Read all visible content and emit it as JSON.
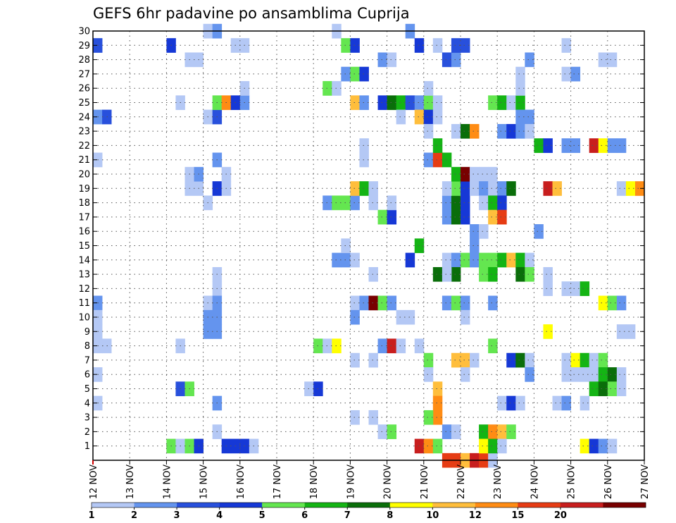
{
  "chart_data": {
    "type": "heatmap",
    "title": "GEFS 6hr padavine po ansamblima Cuprija",
    "xlabel": "",
    "ylabel": "",
    "x_tick_labels": [
      "12 NOV",
      "13 NOV",
      "14 NOV",
      "15 NOV",
      "16 NOV",
      "17 NOV",
      "18 NOV",
      "19 NOV",
      "20 NOV",
      "21 NOV",
      "22 NOV",
      "23 NOV",
      "24 NOV",
      "25 NOV",
      "26 NOV",
      "27 NOV"
    ],
    "x_range_days": [
      12,
      27
    ],
    "y_tick_labels": [
      "1",
      "2",
      "3",
      "4",
      "5",
      "6",
      "7",
      "8",
      "9",
      "10",
      "11",
      "12",
      "13",
      "14",
      "15",
      "16",
      "17",
      "18",
      "19",
      "20",
      "21",
      "22",
      "23",
      "24",
      "25",
      "26",
      "27",
      "28",
      "29",
      "30"
    ],
    "y_range": [
      0,
      30
    ],
    "grid": true,
    "legend": {
      "placement": "bottom",
      "labels": [
        "1",
        "2",
        "3",
        "4",
        "5",
        "6",
        "7",
        "8",
        "10",
        "12",
        "15",
        "20"
      ],
      "colors": [
        "#b4c8f5",
        "#6494ee",
        "#2850dc",
        "#1638d6",
        "#64e650",
        "#14b414",
        "#0a6e0a",
        "#ffff00",
        "#ffbe3c",
        "#ff8c14",
        "#e63c14",
        "#c81e1e",
        "#780000"
      ]
    },
    "color_scale": [
      "#b4c8f5",
      "#6494ee",
      "#2850dc",
      "#1638d6",
      "#64e650",
      "#14b414",
      "#0a6e0a",
      "#ffff00",
      "#ffbe3c",
      "#ff8c14",
      "#e63c14",
      "#c81e1e",
      "#780000"
    ],
    "cells_note": "each cell: [start_day, member, color_class]",
    "cells": [
      [
        12.0,
        29,
        2
      ],
      [
        12.0,
        24,
        1
      ],
      [
        12.25,
        24,
        2
      ],
      [
        12.0,
        21,
        0
      ],
      [
        12.0,
        11,
        1
      ],
      [
        12.0,
        10,
        0
      ],
      [
        12.0,
        9,
        0
      ],
      [
        12.0,
        8,
        0
      ],
      [
        12.25,
        8,
        0
      ],
      [
        12.0,
        6,
        0
      ],
      [
        12.0,
        4,
        0
      ],
      [
        14.0,
        29,
        3
      ],
      [
        14.0,
        1,
        4
      ],
      [
        14.25,
        1,
        0
      ],
      [
        14.5,
        1,
        4
      ],
      [
        14.75,
        1,
        3
      ],
      [
        14.25,
        25,
        0
      ],
      [
        14.25,
        8,
        0
      ],
      [
        14.25,
        5,
        2
      ],
      [
        14.5,
        5,
        4
      ],
      [
        14.5,
        28,
        0
      ],
      [
        14.75,
        28,
        0
      ],
      [
        14.5,
        19,
        0
      ],
      [
        14.75,
        19,
        0
      ],
      [
        14.5,
        20,
        0
      ],
      [
        14.75,
        20,
        1
      ],
      [
        15.0,
        30,
        0
      ],
      [
        15.25,
        30,
        1
      ],
      [
        15.0,
        24,
        0
      ],
      [
        15.25,
        24,
        2
      ],
      [
        15.25,
        25,
        4
      ],
      [
        15.5,
        25,
        9
      ],
      [
        15.75,
        25,
        3
      ],
      [
        16.0,
        25,
        1
      ],
      [
        16.0,
        26,
        0
      ],
      [
        15.25,
        21,
        1
      ],
      [
        15.25,
        19,
        3
      ],
      [
        15.5,
        19,
        0
      ],
      [
        15.5,
        20,
        0
      ],
      [
        15.0,
        18,
        0
      ],
      [
        15.25,
        13,
        0
      ],
      [
        15.25,
        12,
        0
      ],
      [
        15.0,
        11,
        0
      ],
      [
        15.25,
        11,
        1
      ],
      [
        15.0,
        10,
        1
      ],
      [
        15.25,
        10,
        1
      ],
      [
        15.0,
        9,
        1
      ],
      [
        15.25,
        9,
        1
      ],
      [
        15.25,
        4,
        1
      ],
      [
        15.25,
        2,
        0
      ],
      [
        15.75,
        29,
        0
      ],
      [
        16.0,
        29,
        0
      ],
      [
        15.5,
        1,
        3
      ],
      [
        15.75,
        1,
        3
      ],
      [
        16.0,
        1,
        3
      ],
      [
        16.25,
        1,
        0
      ],
      [
        17.75,
        5,
        0
      ],
      [
        18.0,
        5,
        3
      ],
      [
        18.0,
        8,
        4
      ],
      [
        18.25,
        8,
        0
      ],
      [
        18.5,
        8,
        7
      ],
      [
        18.25,
        26,
        4
      ],
      [
        18.5,
        26,
        0
      ],
      [
        18.5,
        30,
        0
      ],
      [
        18.25,
        18,
        1
      ],
      [
        18.5,
        18,
        4
      ],
      [
        18.75,
        18,
        4
      ],
      [
        19.0,
        18,
        1
      ],
      [
        18.5,
        14,
        1
      ],
      [
        18.75,
        14,
        1
      ],
      [
        19.0,
        14,
        0
      ],
      [
        18.75,
        15,
        0
      ],
      [
        18.75,
        29,
        4
      ],
      [
        19.0,
        29,
        3
      ],
      [
        18.75,
        27,
        1
      ],
      [
        19.0,
        27,
        4
      ],
      [
        19.25,
        27,
        3
      ],
      [
        19.0,
        25,
        8
      ],
      [
        19.25,
        25,
        1
      ],
      [
        19.0,
        19,
        8
      ],
      [
        19.25,
        19,
        5
      ],
      [
        19.5,
        19,
        0
      ],
      [
        19.25,
        22,
        0
      ],
      [
        19.25,
        21,
        0
      ],
      [
        19.5,
        18,
        0
      ],
      [
        19.0,
        11,
        0
      ],
      [
        19.25,
        11,
        1
      ],
      [
        19.5,
        11,
        12
      ],
      [
        19.75,
        11,
        4
      ],
      [
        20.0,
        11,
        1
      ],
      [
        19.0,
        10,
        1
      ],
      [
        19.0,
        7,
        0
      ],
      [
        19.5,
        7,
        0
      ],
      [
        19.0,
        3,
        0
      ],
      [
        19.5,
        3,
        0
      ],
      [
        19.5,
        13,
        0
      ],
      [
        19.75,
        28,
        1
      ],
      [
        20.0,
        28,
        0
      ],
      [
        19.75,
        25,
        3
      ],
      [
        20.0,
        25,
        6
      ],
      [
        20.25,
        25,
        5
      ],
      [
        20.5,
        25,
        2
      ],
      [
        20.75,
        25,
        1
      ],
      [
        21.0,
        25,
        4
      ],
      [
        21.25,
        25,
        0
      ],
      [
        19.75,
        17,
        4
      ],
      [
        20.0,
        17,
        3
      ],
      [
        20.0,
        18,
        0
      ],
      [
        19.75,
        8,
        1
      ],
      [
        20.0,
        8,
        11
      ],
      [
        20.25,
        8,
        0
      ],
      [
        20.75,
        8,
        0
      ],
      [
        19.75,
        2,
        0
      ],
      [
        20.0,
        2,
        4
      ],
      [
        20.25,
        24,
        0
      ],
      [
        20.75,
        24,
        8
      ],
      [
        21.0,
        24,
        3
      ],
      [
        21.25,
        24,
        0
      ],
      [
        21.0,
        23,
        0
      ],
      [
        20.25,
        10,
        0
      ],
      [
        20.5,
        10,
        0
      ],
      [
        20.5,
        30,
        1
      ],
      [
        20.75,
        29,
        3
      ],
      [
        21.25,
        29,
        0
      ],
      [
        20.5,
        14,
        3
      ],
      [
        20.75,
        15,
        5
      ],
      [
        21.0,
        26,
        0
      ],
      [
        21.0,
        21,
        1
      ],
      [
        21.25,
        21,
        10
      ],
      [
        21.5,
        21,
        5
      ],
      [
        21.25,
        22,
        5
      ],
      [
        21.0,
        7,
        4
      ],
      [
        21.0,
        6,
        0
      ],
      [
        21.25,
        5,
        8
      ],
      [
        21.25,
        4,
        9
      ],
      [
        21.25,
        3,
        9
      ],
      [
        21.0,
        3,
        4
      ],
      [
        20.75,
        1,
        11
      ],
      [
        21.0,
        1,
        9
      ],
      [
        21.25,
        1,
        4
      ],
      [
        21.5,
        28,
        2
      ],
      [
        21.75,
        28,
        1
      ],
      [
        21.75,
        29,
        2
      ],
      [
        22.0,
        29,
        2
      ],
      [
        21.5,
        18,
        1
      ],
      [
        21.75,
        18,
        6
      ],
      [
        22.0,
        18,
        3
      ],
      [
        21.5,
        17,
        1
      ],
      [
        21.75,
        17,
        6
      ],
      [
        22.0,
        17,
        3
      ],
      [
        21.75,
        19,
        4
      ],
      [
        22.0,
        19,
        3
      ],
      [
        21.5,
        19,
        0
      ],
      [
        21.75,
        20,
        5
      ],
      [
        22.0,
        20,
        12
      ],
      [
        21.75,
        23,
        0
      ],
      [
        22.0,
        23,
        6
      ],
      [
        22.25,
        23,
        9
      ],
      [
        21.5,
        14,
        0
      ],
      [
        21.75,
        14,
        1
      ],
      [
        21.25,
        13,
        6
      ],
      [
        21.75,
        13,
        6
      ],
      [
        21.5,
        13,
        0
      ],
      [
        21.5,
        11,
        1
      ],
      [
        21.75,
        11,
        4
      ],
      [
        22.0,
        11,
        1
      ],
      [
        22.0,
        10,
        0
      ],
      [
        21.5,
        2,
        1
      ],
      [
        21.75,
        2,
        0
      ],
      [
        21.75,
        7,
        8
      ],
      [
        22.0,
        7,
        8
      ],
      [
        22.25,
        7,
        0
      ],
      [
        22.0,
        6,
        0
      ],
      [
        21.5,
        0,
        10
      ],
      [
        21.75,
        0,
        10
      ],
      [
        22.0,
        0,
        8
      ],
      [
        22.25,
        0,
        11
      ],
      [
        22.5,
        0,
        10
      ],
      [
        22.75,
        0,
        0
      ],
      [
        22.25,
        20,
        0
      ],
      [
        22.5,
        20,
        0
      ],
      [
        22.75,
        20,
        0
      ],
      [
        22.25,
        19,
        0
      ],
      [
        22.25,
        16,
        1
      ],
      [
        22.5,
        16,
        0
      ],
      [
        22.25,
        15,
        1
      ],
      [
        22.0,
        14,
        4
      ],
      [
        22.25,
        14,
        1
      ],
      [
        22.5,
        19,
        1
      ],
      [
        22.75,
        19,
        0
      ],
      [
        23.0,
        19,
        1
      ],
      [
        23.25,
        19,
        6
      ],
      [
        22.5,
        18,
        0
      ],
      [
        22.75,
        18,
        5
      ],
      [
        23.0,
        18,
        3
      ],
      [
        22.75,
        17,
        8
      ],
      [
        23.0,
        17,
        10
      ],
      [
        22.5,
        14,
        4
      ],
      [
        22.75,
        14,
        4
      ],
      [
        23.0,
        14,
        5
      ],
      [
        23.25,
        14,
        8
      ],
      [
        23.5,
        14,
        5
      ],
      [
        23.75,
        14,
        0
      ],
      [
        22.5,
        13,
        4
      ],
      [
        22.75,
        13,
        5
      ],
      [
        23.5,
        13,
        6
      ],
      [
        23.75,
        13,
        4
      ],
      [
        22.75,
        11,
        1
      ],
      [
        22.75,
        8,
        4
      ],
      [
        22.5,
        2,
        5
      ],
      [
        22.75,
        2,
        9
      ],
      [
        23.0,
        2,
        8
      ],
      [
        23.25,
        2,
        4
      ],
      [
        22.5,
        1,
        7
      ],
      [
        22.75,
        1,
        5
      ],
      [
        23.0,
        1,
        0
      ],
      [
        22.75,
        25,
        4
      ],
      [
        23.0,
        25,
        5
      ],
      [
        23.25,
        25,
        0
      ],
      [
        23.5,
        25,
        5
      ],
      [
        23.5,
        24,
        1
      ],
      [
        23.75,
        24,
        1
      ],
      [
        23.5,
        26,
        0
      ],
      [
        23.5,
        27,
        0
      ],
      [
        23.75,
        28,
        1
      ],
      [
        23.0,
        23,
        1
      ],
      [
        23.25,
        23,
        3
      ],
      [
        23.5,
        23,
        1
      ],
      [
        23.75,
        23,
        0
      ],
      [
        23.25,
        7,
        3
      ],
      [
        23.5,
        7,
        6
      ],
      [
        23.75,
        7,
        0
      ],
      [
        23.75,
        6,
        1
      ],
      [
        23.0,
        4,
        0
      ],
      [
        23.25,
        4,
        3
      ],
      [
        23.5,
        4,
        0
      ],
      [
        24.0,
        22,
        5
      ],
      [
        24.25,
        22,
        3
      ],
      [
        24.75,
        22,
        1
      ],
      [
        25.5,
        22,
        11
      ],
      [
        25.75,
        22,
        7
      ],
      [
        26.0,
        22,
        1
      ],
      [
        26.25,
        22,
        1
      ],
      [
        24.25,
        19,
        11
      ],
      [
        24.5,
        19,
        8
      ],
      [
        26.25,
        19,
        0
      ],
      [
        26.5,
        19,
        7
      ],
      [
        26.75,
        19,
        9
      ],
      [
        24.0,
        16,
        1
      ],
      [
        24.25,
        13,
        0
      ],
      [
        24.25,
        12,
        0
      ],
      [
        24.25,
        9,
        7
      ],
      [
        24.75,
        29,
        0
      ],
      [
        24.75,
        27,
        0
      ],
      [
        25.0,
        27,
        1
      ],
      [
        25.0,
        22,
        1
      ],
      [
        24.75,
        12,
        0
      ],
      [
        25.0,
        12,
        0
      ],
      [
        25.25,
        12,
        5
      ],
      [
        24.75,
        7,
        0
      ],
      [
        25.0,
        7,
        7
      ],
      [
        25.25,
        7,
        5
      ],
      [
        25.5,
        7,
        0
      ],
      [
        25.75,
        7,
        4
      ],
      [
        24.75,
        6,
        0
      ],
      [
        25.0,
        6,
        0
      ],
      [
        25.25,
        6,
        0
      ],
      [
        25.5,
        6,
        0
      ],
      [
        25.75,
        6,
        5
      ],
      [
        26.0,
        6,
        6
      ],
      [
        26.25,
        6,
        0
      ],
      [
        25.5,
        5,
        5
      ],
      [
        25.75,
        5,
        6
      ],
      [
        26.0,
        5,
        4
      ],
      [
        26.25,
        5,
        0
      ],
      [
        24.5,
        4,
        0
      ],
      [
        24.75,
        4,
        1
      ],
      [
        25.25,
        4,
        0
      ],
      [
        25.25,
        1,
        7
      ],
      [
        25.5,
        1,
        3
      ],
      [
        25.75,
        1,
        1
      ],
      [
        26.0,
        1,
        0
      ],
      [
        25.75,
        28,
        0
      ],
      [
        26.0,
        28,
        0
      ],
      [
        25.75,
        11,
        7
      ],
      [
        26.0,
        11,
        4
      ],
      [
        26.25,
        11,
        1
      ],
      [
        26.25,
        9,
        0
      ],
      [
        26.5,
        9,
        0
      ]
    ]
  }
}
